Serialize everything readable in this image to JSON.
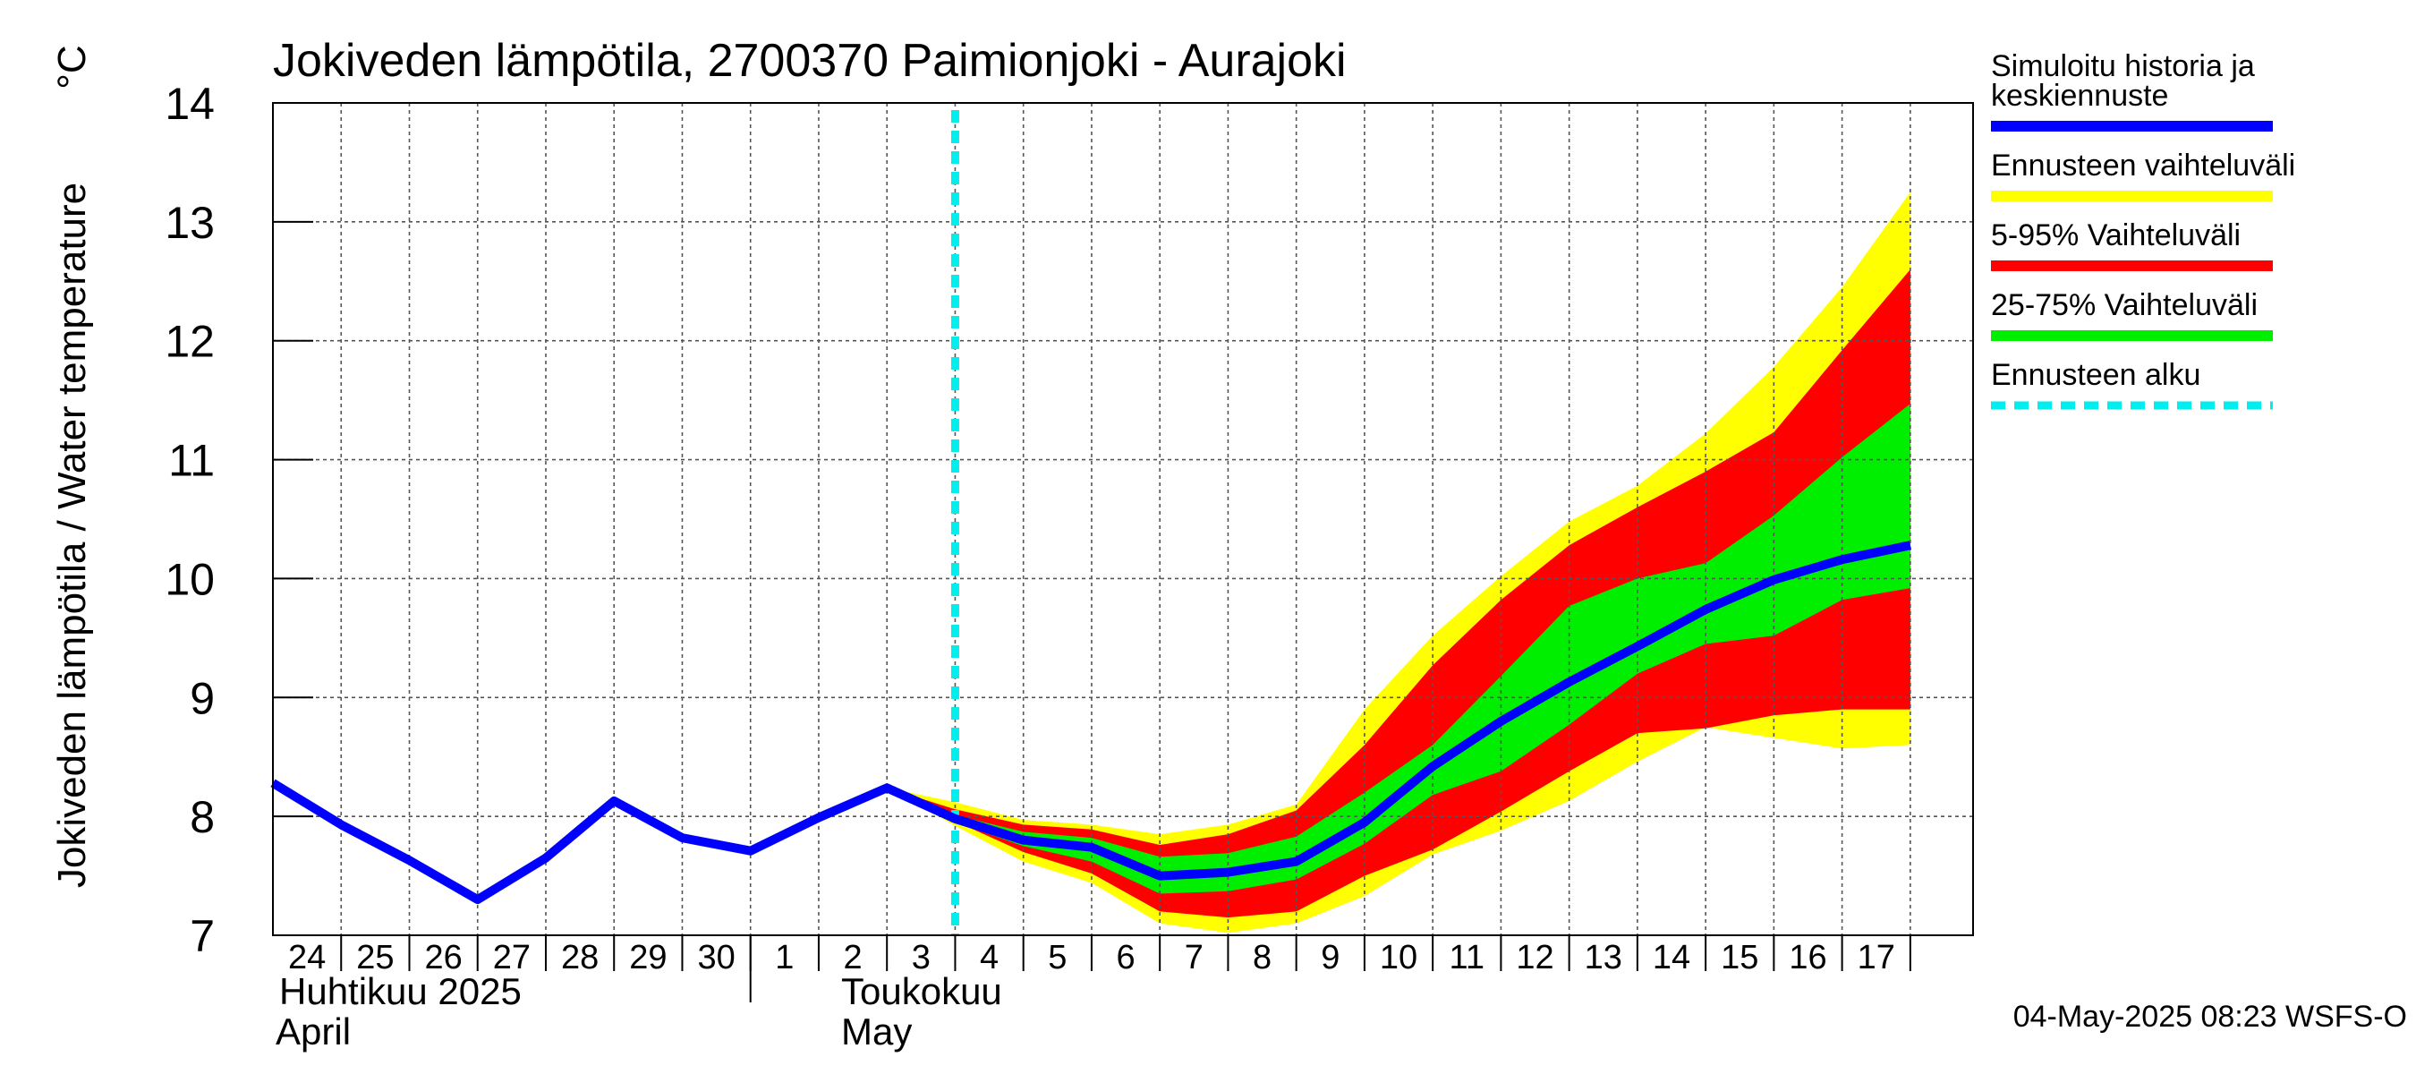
{
  "chart_data": {
    "type": "area",
    "title": "Jokiveden lämpötila, 2700370 Paimionjoki - Aurajoki",
    "ylabel": "Jokiveden lämpötila / Water temperature",
    "yunit": "°C",
    "ylim": [
      7,
      14
    ],
    "yticks": [
      "7",
      "8",
      "9",
      "10",
      "11",
      "12",
      "13",
      "14"
    ],
    "x": [
      "2025-04-24",
      "2025-04-25",
      "2025-04-26",
      "2025-04-27",
      "2025-04-28",
      "2025-04-29",
      "2025-04-30",
      "2025-05-01",
      "2025-05-02",
      "2025-05-03",
      "2025-05-04",
      "2025-05-05",
      "2025-05-06",
      "2025-05-07",
      "2025-05-08",
      "2025-05-09",
      "2025-05-10",
      "2025-05-11",
      "2025-05-12",
      "2025-05-13",
      "2025-05-14",
      "2025-05-15",
      "2025-05-16",
      "2025-05-17",
      "2025-05-18"
    ],
    "xticks": [
      "24",
      "25",
      "26",
      "27",
      "28",
      "29",
      "30",
      "1",
      "2",
      "3",
      "4",
      "5",
      "6",
      "7",
      "8",
      "9",
      "10",
      "11",
      "12",
      "13",
      "14",
      "15",
      "16",
      "17"
    ],
    "month_labels": [
      {
        "line1": "Huhtikuu  2025",
        "line2": "April"
      },
      {
        "line1": "Toukokuu",
        "line2": "May"
      }
    ],
    "forecast_start": "2025-05-04",
    "grid": true,
    "legend_position": "right",
    "series": [
      {
        "name": "Simuloitu historia ja keskiennuste",
        "role": "median",
        "color": "#0000ff",
        "x": [
          "2025-04-24",
          "2025-04-25",
          "2025-04-26",
          "2025-04-27",
          "2025-04-28",
          "2025-04-29",
          "2025-04-30",
          "2025-05-01",
          "2025-05-02",
          "2025-05-03",
          "2025-05-04",
          "2025-05-05",
          "2025-05-06",
          "2025-05-07",
          "2025-05-08",
          "2025-05-09",
          "2025-05-10",
          "2025-05-11",
          "2025-05-12",
          "2025-05-13",
          "2025-05-14",
          "2025-05-15",
          "2025-05-16",
          "2025-05-17",
          "2025-05-18"
        ],
        "values": [
          8.28,
          7.93,
          7.63,
          7.3,
          7.65,
          8.13,
          7.82,
          7.71,
          7.99,
          8.24,
          7.98,
          7.8,
          7.74,
          7.5,
          7.53,
          7.62,
          7.95,
          8.42,
          8.8,
          9.13,
          9.43,
          9.74,
          9.99,
          10.16,
          10.28
        ]
      },
      {
        "name": "Ennusteen vaihteluväli",
        "role": "band",
        "color": "#ffff00",
        "x": [
          "2025-05-03",
          "2025-05-04",
          "2025-05-05",
          "2025-05-06",
          "2025-05-07",
          "2025-05-08",
          "2025-05-09",
          "2025-05-10",
          "2025-05-11",
          "2025-05-12",
          "2025-05-13",
          "2025-05-14",
          "2025-05-15",
          "2025-05-16",
          "2025-05-17",
          "2025-05-18"
        ],
        "upper": [
          8.24,
          8.12,
          7.97,
          7.93,
          7.85,
          7.93,
          8.1,
          8.9,
          9.52,
          10.02,
          10.48,
          10.78,
          11.22,
          11.78,
          12.45,
          13.25
        ],
        "lower": [
          8.24,
          7.92,
          7.62,
          7.44,
          7.1,
          7.02,
          7.1,
          7.33,
          7.68,
          7.88,
          8.13,
          8.46,
          8.75,
          8.66,
          8.57,
          8.6
        ]
      },
      {
        "name": "5-95% Vaihteluväli",
        "role": "band",
        "color": "#ff0000",
        "x": [
          "2025-05-03",
          "2025-05-04",
          "2025-05-05",
          "2025-05-06",
          "2025-05-07",
          "2025-05-08",
          "2025-05-09",
          "2025-05-10",
          "2025-05-11",
          "2025-05-12",
          "2025-05-13",
          "2025-05-14",
          "2025-05-15",
          "2025-05-16",
          "2025-05-17",
          "2025-05-18"
        ],
        "upper": [
          8.24,
          8.06,
          7.93,
          7.89,
          7.76,
          7.85,
          8.05,
          8.6,
          9.27,
          9.82,
          10.28,
          10.6,
          10.9,
          11.23,
          11.92,
          12.6
        ],
        "lower": [
          8.24,
          7.96,
          7.7,
          7.52,
          7.2,
          7.15,
          7.2,
          7.5,
          7.72,
          8.04,
          8.38,
          8.7,
          8.74,
          8.85,
          8.9,
          8.9
        ]
      },
      {
        "name": "25-75% Vaihteluväli",
        "role": "band",
        "color": "#00ee00",
        "x": [
          "2025-05-03",
          "2025-05-04",
          "2025-05-05",
          "2025-05-06",
          "2025-05-07",
          "2025-05-08",
          "2025-05-09",
          "2025-05-10",
          "2025-05-11",
          "2025-05-12",
          "2025-05-13",
          "2025-05-14",
          "2025-05-15",
          "2025-05-16",
          "2025-05-17",
          "2025-05-18"
        ],
        "upper": [
          8.24,
          8.01,
          7.87,
          7.82,
          7.66,
          7.69,
          7.83,
          8.2,
          8.6,
          9.18,
          9.77,
          10.0,
          10.13,
          10.53,
          11.02,
          11.47
        ],
        "lower": [
          8.24,
          7.95,
          7.75,
          7.62,
          7.35,
          7.37,
          7.47,
          7.77,
          8.18,
          8.38,
          8.77,
          9.2,
          9.45,
          9.52,
          9.82,
          9.92
        ]
      },
      {
        "name": "Ennusteen alku",
        "role": "marker",
        "color": "#00eeee"
      }
    ]
  },
  "legend": {
    "items": [
      {
        "line1": "Simuloitu historia ja",
        "line2": "keskiennuste",
        "color": "#0000ff",
        "style": "solid"
      },
      {
        "line1": "Ennusteen vaihteluväli",
        "line2": "",
        "color": "#ffff00",
        "style": "solid"
      },
      {
        "line1": "5-95% Vaihteluväli",
        "line2": "",
        "color": "#ff0000",
        "style": "solid"
      },
      {
        "line1": "25-75% Vaihteluväli",
        "line2": "",
        "color": "#00ee00",
        "style": "solid"
      },
      {
        "line1": "Ennusteen alku",
        "line2": "",
        "color": "#00eeee",
        "style": "dashed"
      }
    ]
  },
  "footer": "04-May-2025 08:23 WSFS-O"
}
